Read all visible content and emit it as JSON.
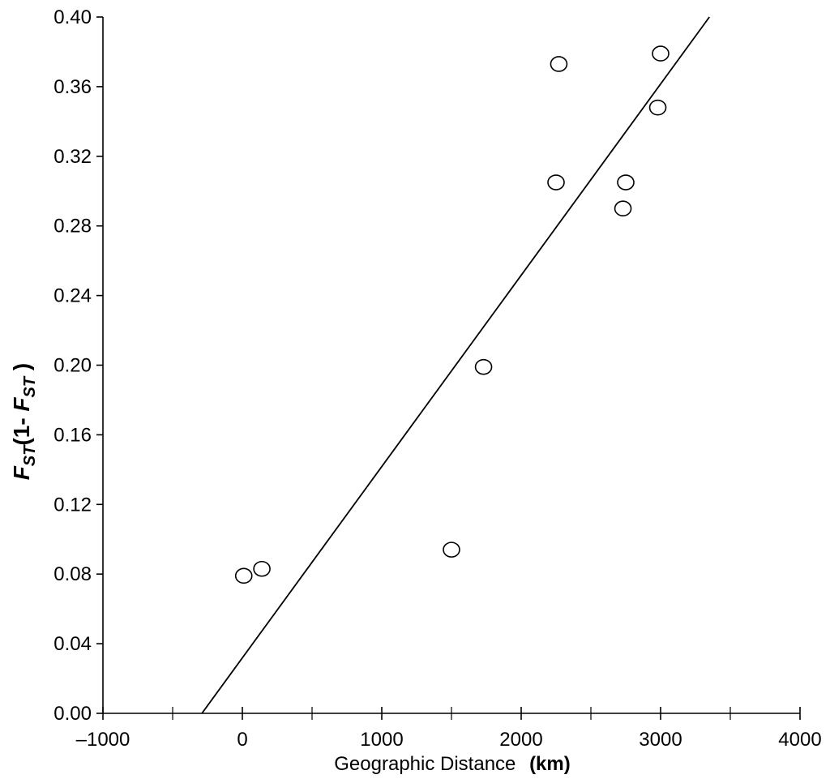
{
  "chart_data": {
    "type": "scatter",
    "xlim": [
      -1000,
      4000
    ],
    "ylim": [
      0,
      0.4
    ],
    "x_ticks": [
      -1000,
      0,
      1000,
      2000,
      3000,
      4000
    ],
    "x_tick_labels": [
      "–1000",
      "0",
      "1000",
      "2000",
      "3000",
      "4000"
    ],
    "x_minor_ticks": [
      -500,
      500,
      1500,
      2500,
      3500
    ],
    "y_ticks": [
      0,
      0.04,
      0.08,
      0.12,
      0.16,
      0.2,
      0.24,
      0.28,
      0.32,
      0.36,
      0.4
    ],
    "y_tick_labels": [
      "0.00",
      "0.04",
      "0.08",
      "0.12",
      "0.16",
      "0.20",
      "0.24",
      "0.28",
      "0.32",
      "0.36",
      "0.40"
    ],
    "xlabel": "Geographic Distance",
    "xlabel_unit": "(km)",
    "ylabel_parts": {
      "f1": "F",
      "sub1": "ST",
      "mid": "(1- ",
      "f2": "F",
      "sub2": "ST",
      "end": " )"
    },
    "points": [
      {
        "x": 10,
        "y": 0.079
      },
      {
        "x": 140,
        "y": 0.083
      },
      {
        "x": 1500,
        "y": 0.094
      },
      {
        "x": 1730,
        "y": 0.199
      },
      {
        "x": 2250,
        "y": 0.305
      },
      {
        "x": 2270,
        "y": 0.373
      },
      {
        "x": 2730,
        "y": 0.29
      },
      {
        "x": 2750,
        "y": 0.305
      },
      {
        "x": 2980,
        "y": 0.348
      },
      {
        "x": 3000,
        "y": 0.379
      }
    ],
    "regression_line": {
      "x_start": -290,
      "y_start": 0.0,
      "x_end": 3350,
      "y_end": 0.4
    },
    "grid": false,
    "legend": "none"
  }
}
